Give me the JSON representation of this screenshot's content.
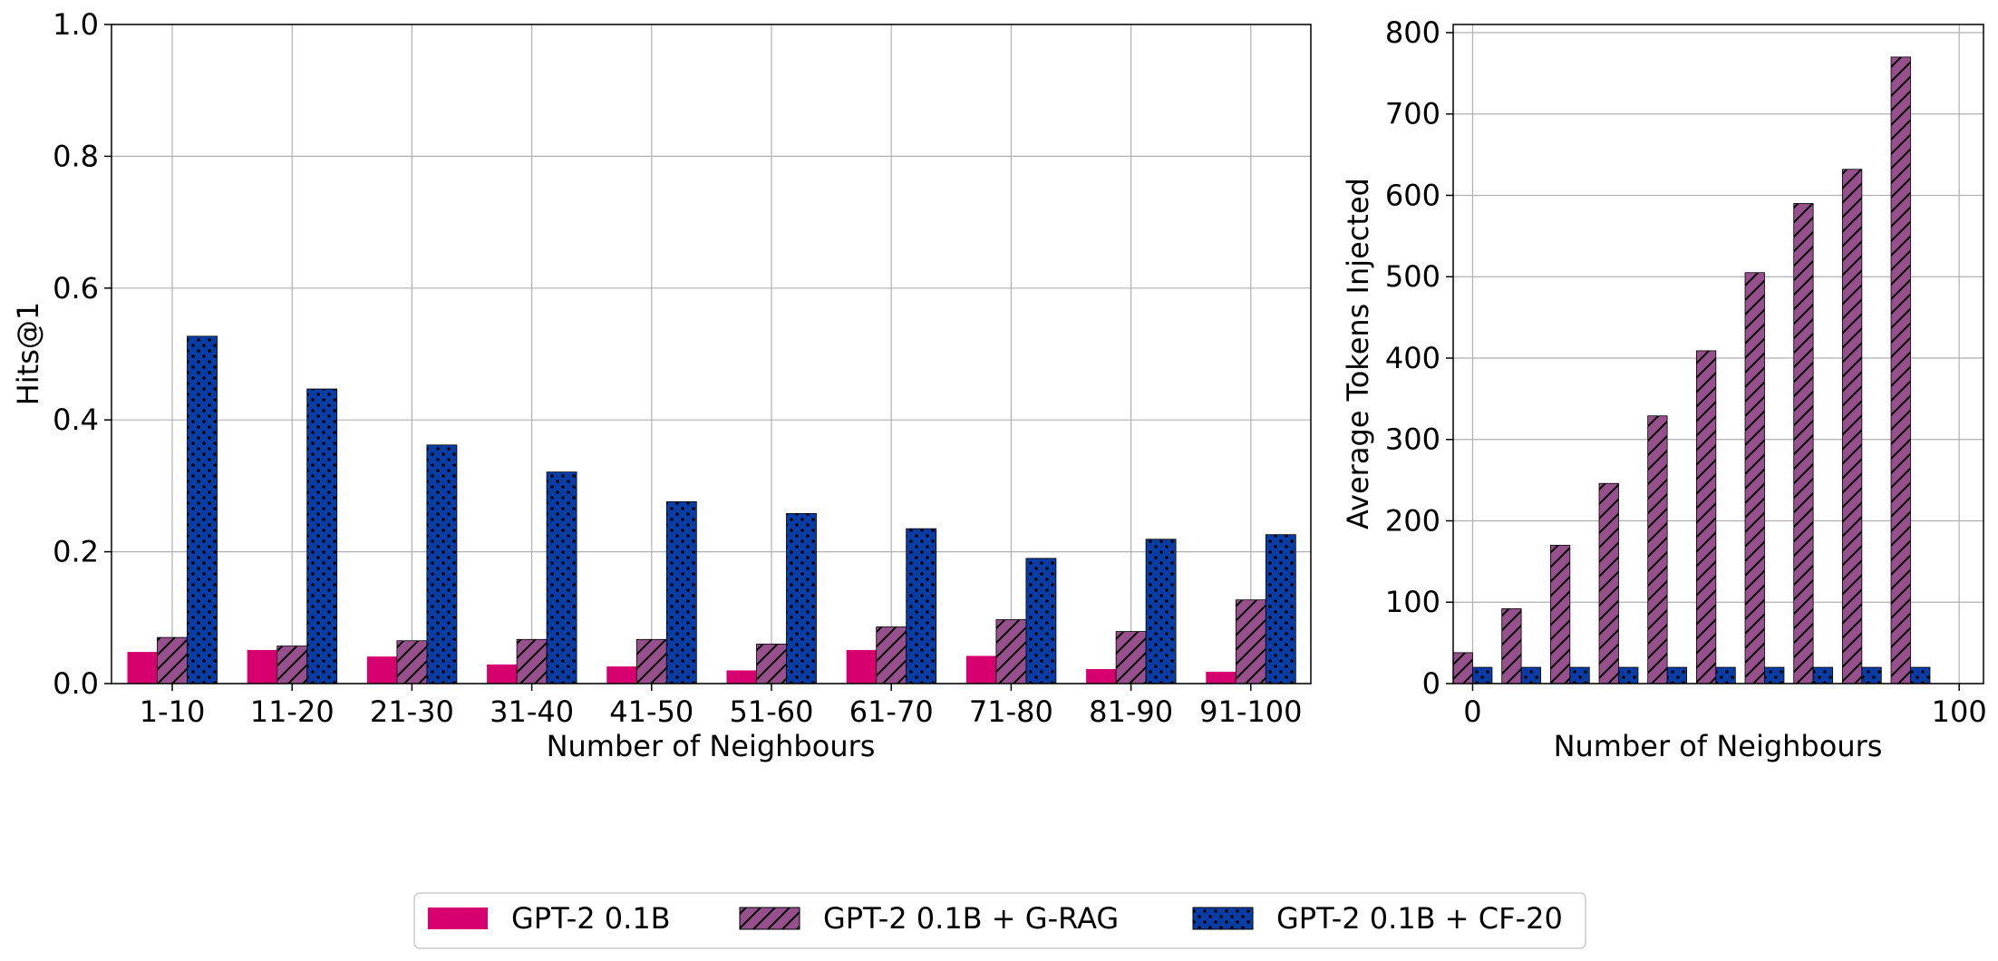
{
  "chart_data": [
    {
      "type": "bar",
      "xlabel": "Number of Neighbours",
      "ylabel": "Hits@1",
      "ylim": [
        0,
        1.0
      ],
      "yticks": [
        "0.0",
        "0.2",
        "0.4",
        "0.6",
        "0.8",
        "1.0"
      ],
      "grid": true,
      "categories": [
        "1-10",
        "11-20",
        "21-30",
        "31-40",
        "41-50",
        "51-60",
        "61-70",
        "71-80",
        "81-90",
        "91-100"
      ],
      "series": [
        {
          "name": "GPT-2 0.1B",
          "values": [
            0.048,
            0.051,
            0.041,
            0.029,
            0.026,
            0.02,
            0.051,
            0.042,
            0.022,
            0.018
          ]
        },
        {
          "name": "GPT-2 0.1B + G-RAG",
          "values": [
            0.07,
            0.057,
            0.065,
            0.067,
            0.067,
            0.06,
            0.086,
            0.097,
            0.079,
            0.127
          ]
        },
        {
          "name": "GPT-2 0.1B + CF-20",
          "values": [
            0.527,
            0.447,
            0.362,
            0.321,
            0.276,
            0.258,
            0.235,
            0.19,
            0.219,
            0.226
          ]
        }
      ]
    },
    {
      "type": "bar",
      "xlabel": "Number of Neighbours",
      "ylabel": "Average Tokens Injected",
      "ylim": [
        0,
        810
      ],
      "xlim": [
        -4,
        105
      ],
      "yticks": [
        "0",
        "100",
        "200",
        "300",
        "400",
        "500",
        "600",
        "700",
        "800"
      ],
      "xticks": [
        "0",
        "100"
      ],
      "grid": true,
      "x": [
        0,
        10,
        20,
        30,
        40,
        50,
        60,
        70,
        80,
        90
      ],
      "series": [
        {
          "name": "GPT-2 0.1B + G-RAG",
          "values": [
            38,
            92,
            170,
            246,
            329,
            409,
            505,
            590,
            632,
            770
          ]
        },
        {
          "name": "GPT-2 0.1B + CF-20",
          "values": [
            20,
            20,
            20,
            20,
            20,
            20,
            20,
            20,
            20,
            20
          ]
        }
      ]
    }
  ],
  "legend": {
    "position": "bottom-center",
    "items": [
      "GPT-2 0.1B",
      "GPT-2 0.1B + G-RAG",
      "GPT-2 0.1B + CF-20"
    ]
  },
  "colors": {
    "gpt2": "#D6006E",
    "grag": "#96508C",
    "cf20": "#0A3CA5"
  }
}
